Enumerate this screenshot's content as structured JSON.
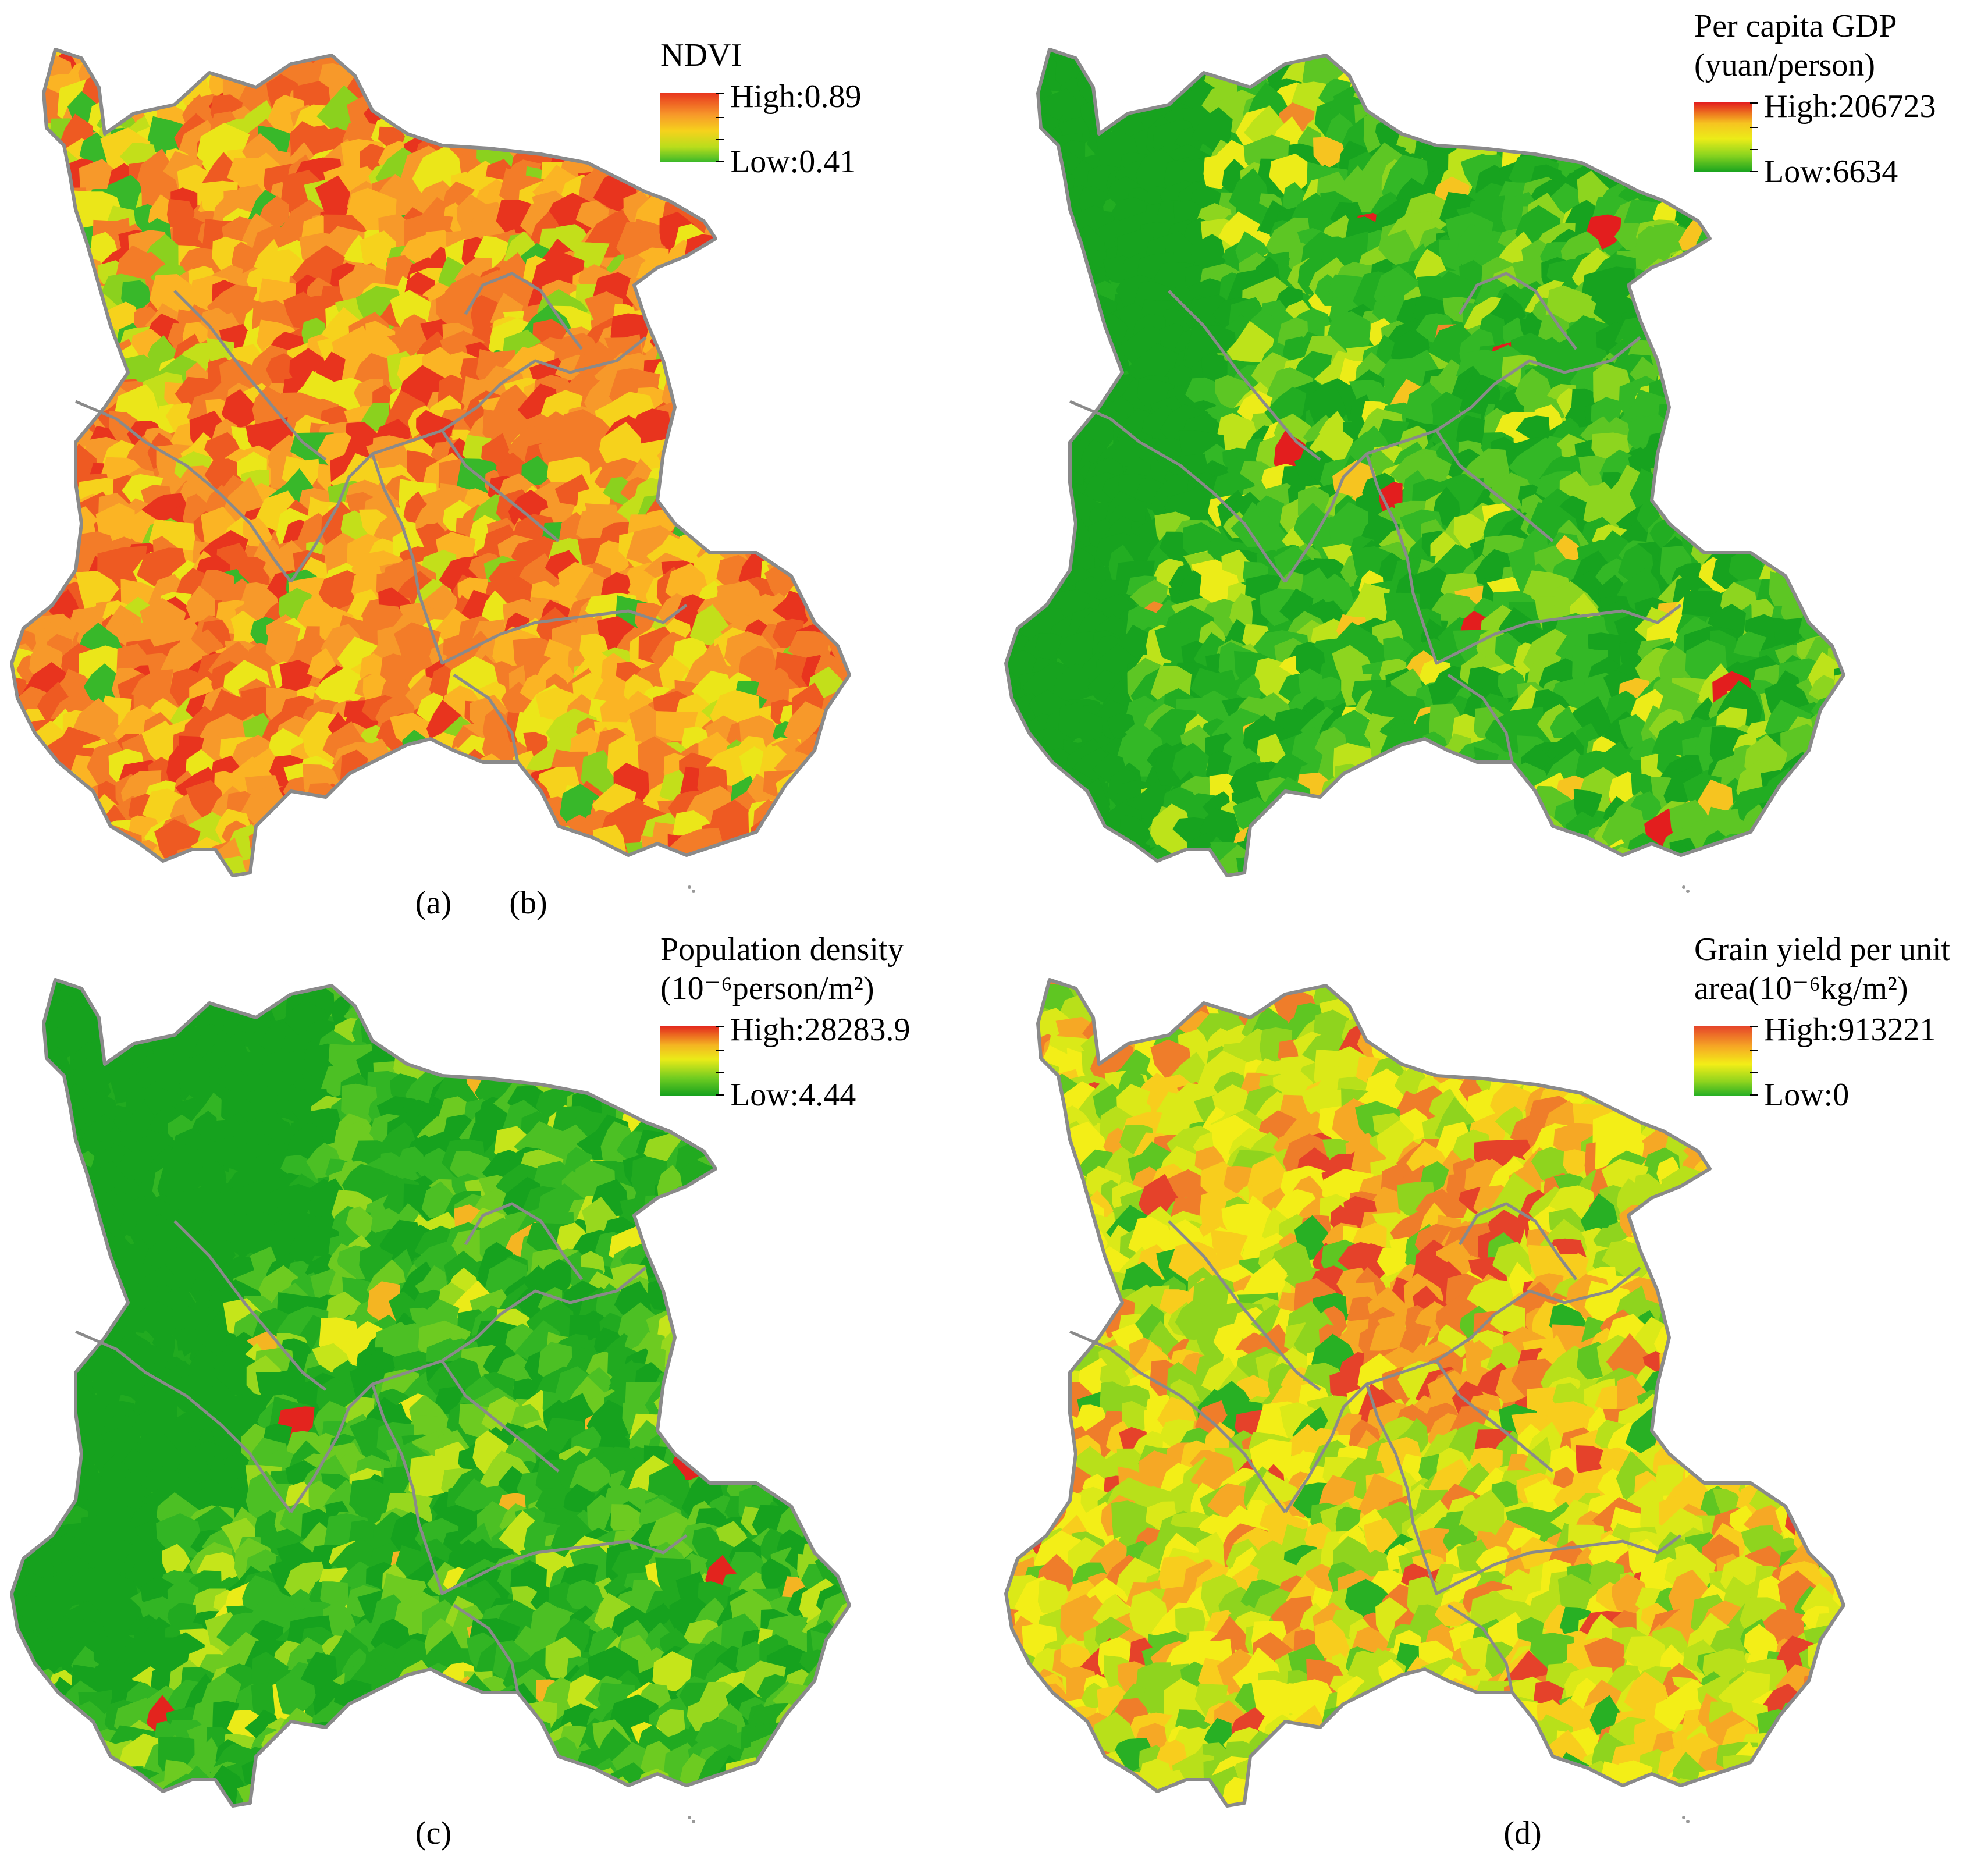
{
  "panels": [
    {
      "id": "a",
      "caption": "(a)",
      "legend": {
        "title_lines": [
          "NDVI"
        ],
        "high": "High:0.89",
        "low": "Low:0.41"
      },
      "palette": [
        "#e8341e",
        "#ee5a22",
        "#f37c28",
        "#f7992a",
        "#fbb424",
        "#f6d21c",
        "#ebe619",
        "#c3df1a",
        "#8bd11e",
        "#38b82a"
      ],
      "weights": [
        9,
        12,
        16,
        14,
        10,
        7,
        5,
        3,
        2,
        1
      ]
    },
    {
      "id": "b",
      "caption": "(b)",
      "legend": {
        "title_lines": [
          "Per capita GDP",
          "(yuan/person)"
        ],
        "high": "High:206723",
        "low": "Low:6634"
      },
      "palette": [
        "#17a31f",
        "#22ad22",
        "#33b826",
        "#5dc624",
        "#8dd51f",
        "#bde31a",
        "#ecec18",
        "#f6c420",
        "#f08a2a",
        "#e31e1e"
      ],
      "weights": [
        16,
        15,
        13,
        11,
        8,
        5,
        3,
        1.6,
        0.7,
        0.4
      ]
    },
    {
      "id": "c",
      "caption": "(c)",
      "legend": {
        "title_lines": [
          "Population density",
          "(10⁻⁶person/m²)"
        ],
        "high": "High:28283.9",
        "low": "Low:4.44"
      },
      "palette": [
        "#16a21e",
        "#21aa20",
        "#32b524",
        "#4cc024",
        "#6dcb21",
        "#97d81e",
        "#c5e51a",
        "#ebeb18",
        "#f4b522",
        "#e3241e"
      ],
      "weights": [
        16,
        15,
        13,
        11,
        8,
        6,
        3,
        1.4,
        0.5,
        0.4
      ]
    },
    {
      "id": "d",
      "caption": "(d)",
      "legend": {
        "title_lines": [
          "Grain yield per unit",
          "area(10⁻⁶kg/m²)"
        ],
        "high": "High:913221",
        "low": "Low:0"
      },
      "palette": [
        "#28b024",
        "#5fc622",
        "#8fd41e",
        "#b8e01a",
        "#dbe918",
        "#f3ee17",
        "#f8cd1d",
        "#f6a825",
        "#ef7d2a",
        "#e5422a"
      ],
      "weights": [
        2,
        5,
        9,
        11,
        11,
        11,
        9,
        8,
        5,
        2
      ]
    }
  ]
}
